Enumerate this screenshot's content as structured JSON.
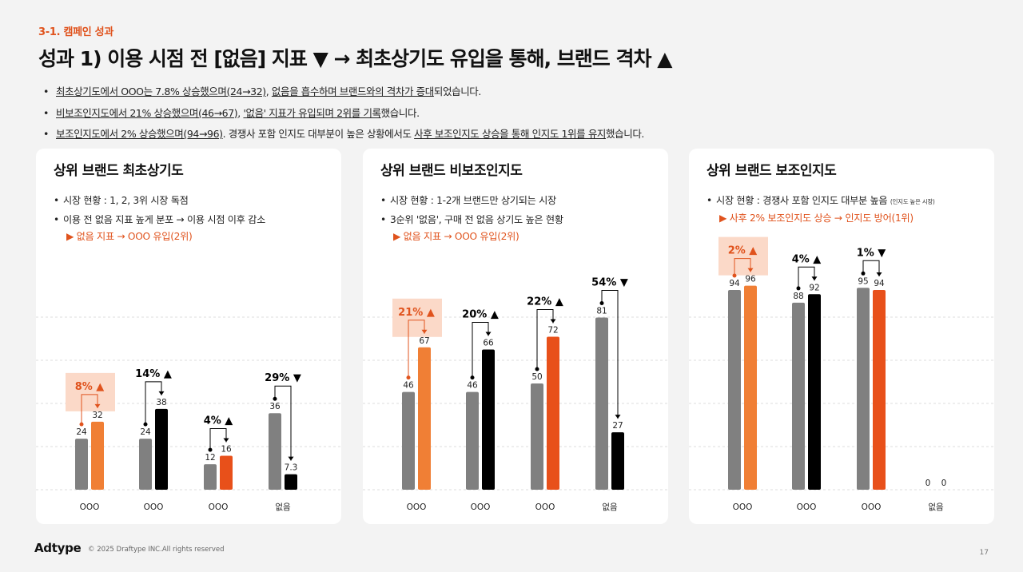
{
  "header": {
    "section_label": "3-1. 캠페인 성과",
    "title": "성과 1) 이용 시점 전 [없음] 지표 ▼ → 최초상기도 유입을 통해, 브랜드 격차 ▲"
  },
  "bullets": [
    {
      "u1": "최초상기도에서 OOO는 7.8% 상승했으며(24→32)",
      "mid": ", ",
      "u2": "없음을 흡수하며 브랜드와의 격차가 증대",
      "tail": "되었습니다."
    },
    {
      "u1": "비보조인지도에서 21% 상승했으며(46→67)",
      "mid": ", ",
      "u2": "'없음' 지표가 유입되며 2위를 기록",
      "tail": "했습니다."
    },
    {
      "u1": "보조인지도에서 2% 상승했으며(94→96)",
      "mid": ". 경쟁사 포함 인지도 대부분이 높은 상황에서도 ",
      "u2": "사후 보조인지도 상승을 통해 인지도 1위를 유지",
      "tail": "했습니다."
    }
  ],
  "cards": [
    {
      "title": "상위 브랜드 최초상기도",
      "bullets": [
        "시장 현황 : 1, 2, 3위 시장 독점",
        "이용 전 없음 지표 높게 분포 → 이용 시점 이후 감소"
      ],
      "note": "",
      "highlight": "▶ 없음 지표 → OOO 유입(2위)"
    },
    {
      "title": "상위 브랜드 비보조인지도",
      "bullets": [
        "시장 현황 : 1-2개 브랜드만 상기되는 시장",
        "3순위 '없음', 구매 전 없음 상기도 높은 현황"
      ],
      "note": "",
      "highlight": "▶ 없음 지표 → OOO 유입(2위)"
    },
    {
      "title": "상위 브랜드 보조인지도",
      "bullets": [
        "시장 현황 : 경쟁사 포함 인지도 대부분 높음"
      ],
      "note": "(인지도 높은 시장)",
      "highlight": "▶ 사후 2% 보조인지도 상승 → 인지도 방어(1위)"
    }
  ],
  "chart_data": [
    {
      "type": "bar",
      "title": "상위 브랜드 최초상기도",
      "categories": [
        "OOO",
        "OOO",
        "OOO",
        "없음"
      ],
      "series": [
        {
          "values": [
            24,
            24,
            12,
            36
          ],
          "color": "#808080"
        },
        {
          "values": [
            32,
            38,
            16,
            7.3
          ],
          "colors": [
            "#f07f35",
            "#000000",
            "#e8501a",
            "#000000"
          ]
        }
      ],
      "changes": [
        {
          "label": "8%",
          "direction": "up",
          "highlight": true
        },
        {
          "label": "14%",
          "direction": "up",
          "highlight": false
        },
        {
          "label": "4%",
          "direction": "up",
          "highlight": false
        },
        {
          "label": "29%",
          "direction": "down",
          "highlight": false
        }
      ],
      "ylim": [
        0,
        100
      ]
    },
    {
      "type": "bar",
      "title": "상위 브랜드 비보조인지도",
      "categories": [
        "OOO",
        "OOO",
        "OOO",
        "없음"
      ],
      "series": [
        {
          "values": [
            46,
            46,
            50,
            81
          ],
          "color": "#808080"
        },
        {
          "values": [
            67,
            66,
            72,
            27
          ],
          "colors": [
            "#f07f35",
            "#000000",
            "#e8501a",
            "#000000"
          ]
        }
      ],
      "changes": [
        {
          "label": "21%",
          "direction": "up",
          "highlight": true
        },
        {
          "label": "20%",
          "direction": "up",
          "highlight": false
        },
        {
          "label": "22%",
          "direction": "up",
          "highlight": false
        },
        {
          "label": "54%",
          "direction": "down",
          "highlight": false
        }
      ],
      "ylim": [
        0,
        100
      ]
    },
    {
      "type": "bar",
      "title": "상위 브랜드 보조인지도",
      "categories": [
        "OOO",
        "OOO",
        "OOO",
        "없음"
      ],
      "series": [
        {
          "values": [
            94,
            88,
            95,
            0
          ],
          "color": "#808080"
        },
        {
          "values": [
            96,
            92,
            94,
            0
          ],
          "colors": [
            "#f07f35",
            "#000000",
            "#e8501a",
            "#000000"
          ]
        }
      ],
      "changes": [
        {
          "label": "2%",
          "direction": "up",
          "highlight": true
        },
        {
          "label": "4%",
          "direction": "up",
          "highlight": false
        },
        {
          "label": "1%",
          "direction": "down",
          "highlight": false
        },
        null
      ],
      "ylim": [
        0,
        100
      ]
    }
  ],
  "colors": {
    "accent": "#e0531d",
    "orange": "#f07f35",
    "highlight_box": "#fbd9c8",
    "gray_bar": "#808080",
    "grid": "#dddddd"
  },
  "footer": {
    "logo": "Adtype",
    "copyright": "© 2025 Draftype INC.All rights reserved",
    "page": "17"
  }
}
